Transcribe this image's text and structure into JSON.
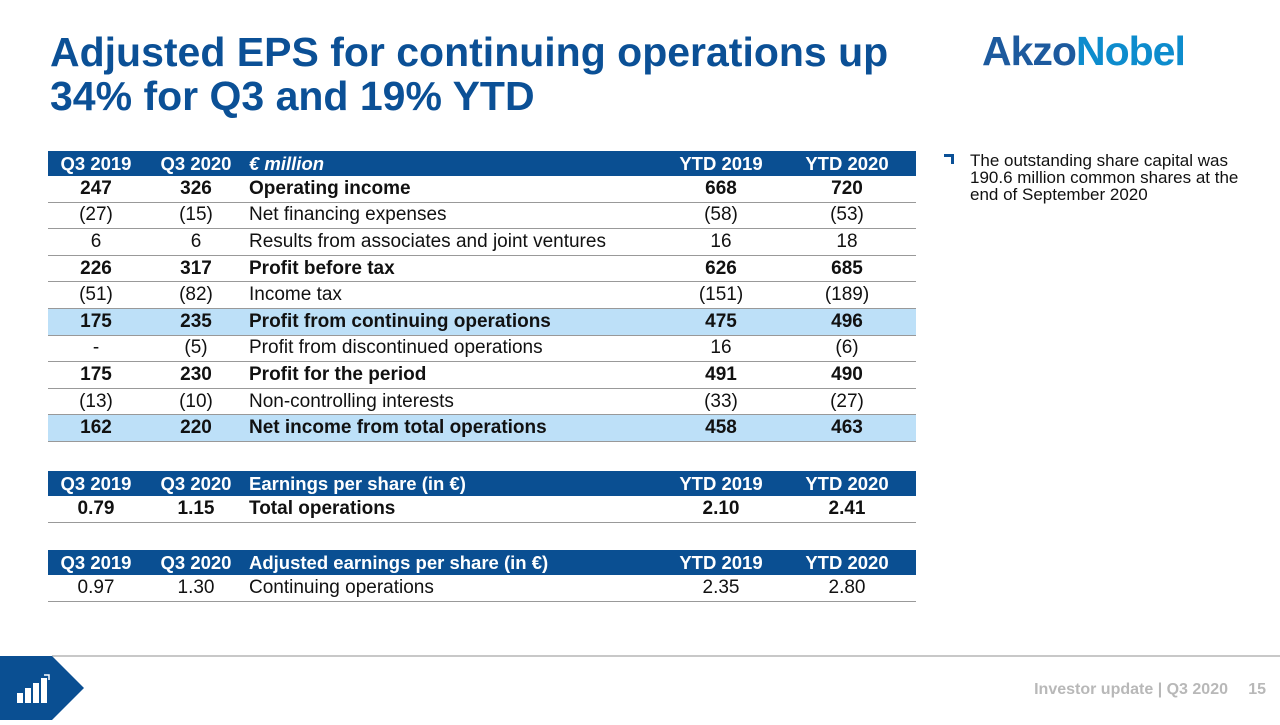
{
  "title": "Adjusted EPS for continuing operations up 34% for Q3 and 19% YTD",
  "logo": {
    "part1": "Akzo",
    "part2": "Nobel"
  },
  "note": "The outstanding share capital was 190.6 million common shares at the end of September 2020",
  "tables": [
    {
      "header": [
        "Q3 2019",
        "Q3 2020",
        "€ million",
        "YTD 2019",
        "YTD 2020"
      ],
      "header_italic": true,
      "rows": [
        {
          "cells": [
            "247",
            "326",
            "Operating income",
            "668",
            "720"
          ],
          "bold": true
        },
        {
          "cells": [
            "(27)",
            "(15)",
            "Net financing expenses",
            "(58)",
            "(53)"
          ]
        },
        {
          "cells": [
            "6",
            "6",
            "Results from associates and joint ventures",
            "16",
            "18"
          ]
        },
        {
          "cells": [
            "226",
            "317",
            "Profit before tax",
            "626",
            "685"
          ],
          "bold": true
        },
        {
          "cells": [
            "(51)",
            "(82)",
            "Income tax",
            "(151)",
            "(189)"
          ]
        },
        {
          "cells": [
            "175",
            "235",
            "Profit from continuing operations",
            "475",
            "496"
          ],
          "bold": true,
          "highlight": true
        },
        {
          "cells": [
            "-",
            "(5)",
            "Profit from discontinued operations",
            "16",
            "(6)"
          ]
        },
        {
          "cells": [
            "175",
            "230",
            "Profit for the period",
            "491",
            "490"
          ],
          "bold": true
        },
        {
          "cells": [
            "(13)",
            "(10)",
            "Non-controlling interests",
            "(33)",
            "(27)"
          ]
        },
        {
          "cells": [
            "162",
            "220",
            "Net income from total operations",
            "458",
            "463"
          ],
          "bold": true,
          "highlight": true
        }
      ]
    },
    {
      "header": [
        "Q3 2019",
        "Q3 2020",
        "Earnings per share (in €)",
        "YTD 2019",
        "YTD 2020"
      ],
      "rows": [
        {
          "cells": [
            "0.79",
            "1.15",
            "Total operations",
            "2.10",
            "2.41"
          ],
          "bold": true
        }
      ]
    },
    {
      "header": [
        "Q3 2019",
        "Q3 2020",
        "Adjusted earnings per share (in €)",
        "YTD 2019",
        "YTD 2020"
      ],
      "rows": [
        {
          "cells": [
            "0.97",
            "1.30",
            "Continuing operations",
            "2.35",
            "2.80"
          ]
        }
      ]
    }
  ],
  "footer": "Investor update | Q3 2020",
  "page_number": "15",
  "colors": {
    "brand": "#0a4f92",
    "highlight": "#bde0f8"
  }
}
